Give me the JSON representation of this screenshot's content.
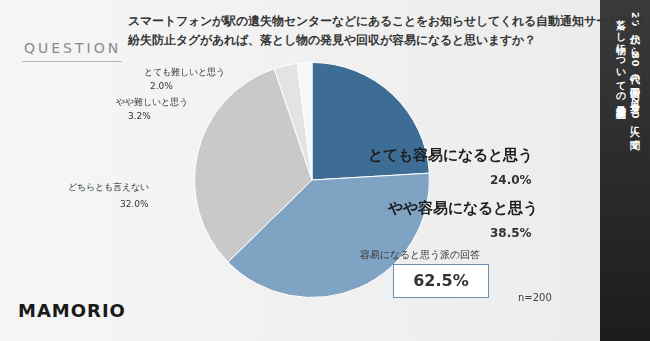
{
  "chart_data": {
    "type": "pie",
    "question_label": "QUESTION",
    "question": [
      "スマートフォンが駅の遺失物センターなどにあることをお知らせしてくれる自動通知サービスや",
      "紛失防止タグがあれば、落とし物の発見や回収が容易になると思いますか？"
    ],
    "categories": [
      "とても容易になると思う",
      "やや容易になると思う",
      "どちらとも言えない",
      "やや難しいと思う",
      "とても難しいと思う"
    ],
    "values": [
      24.0,
      38.5,
      32.0,
      3.2,
      2.0
    ],
    "value_labels": [
      "24.0%",
      "38.5%",
      "32.0%",
      "3.2%",
      "2.0%"
    ],
    "colors": [
      "#3d6d95",
      "#7fa3c3",
      "#c9c9c9",
      "#e3e3e3",
      "#f7f7f7"
    ],
    "data_labels": true,
    "annotation": {
      "text": "容易になると思う派の回答",
      "value": 62.5,
      "value_label": "62.5%"
    },
    "sample_size_label": "n=200",
    "brand": "MAMORIO",
    "side_text": [
      "20代から80代の全国の男女200人に聞く",
      "落とし物についての最新調査"
    ]
  }
}
